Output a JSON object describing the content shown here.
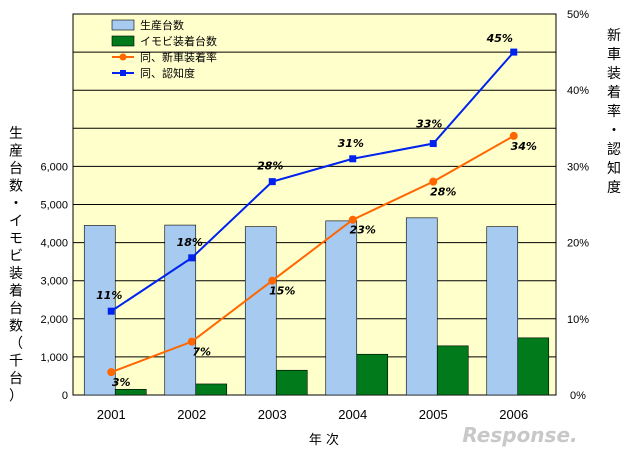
{
  "chart_data": {
    "type": "bar",
    "categories": [
      "2001",
      "2002",
      "2003",
      "2004",
      "2005",
      "2006"
    ],
    "xlabel": "年 次",
    "ylabel_left": "生産台数・イモビ装着台数（千台）",
    "ylabel_right": "新車装着率・認知度",
    "ylim_left": [
      0,
      10000
    ],
    "ylim_right": [
      0,
      50
    ],
    "yticks_left": [
      "0",
      "1,000",
      "2,000",
      "3,000",
      "4,000",
      "5,000",
      "6,000"
    ],
    "yticks_right": [
      "0%",
      "10%",
      "20%",
      "30%",
      "40%",
      "50%"
    ],
    "series": [
      {
        "name": "生産台数",
        "kind": "bar",
        "axis": "left",
        "color": "#a6caf0",
        "values": [
          4450,
          4460,
          4420,
          4570,
          4650,
          4420
        ]
      },
      {
        "name": "イモビ装着台数",
        "kind": "bar",
        "axis": "left",
        "color": "#007a1a",
        "values": [
          150,
          290,
          650,
          1070,
          1290,
          1500
        ]
      },
      {
        "name": "同、新車装着率",
        "kind": "line",
        "axis": "right",
        "color": "#ff6600",
        "values": [
          3,
          7,
          15,
          23,
          28,
          34
        ],
        "labels": [
          "3%",
          "7%",
          "15%",
          "23%",
          "28%",
          "34%"
        ]
      },
      {
        "name": "同、認知度",
        "kind": "line",
        "axis": "right",
        "color": "#0022ee",
        "values": [
          11,
          18,
          28,
          31,
          33,
          45
        ],
        "labels": [
          "11%",
          "18%",
          "28%",
          "31%",
          "33%",
          "45%"
        ]
      }
    ],
    "grid": true,
    "legend": "top-left"
  },
  "colors": {
    "plot_bg": "#ffffcc",
    "grid": "#000000"
  },
  "watermark": "Response."
}
